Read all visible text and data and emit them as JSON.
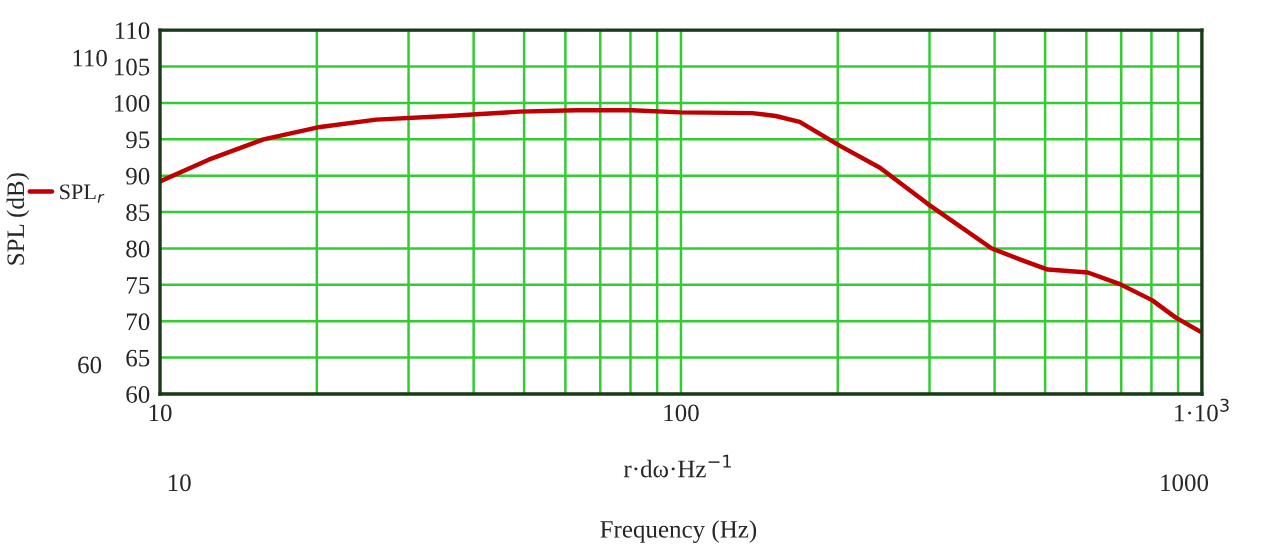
{
  "chart_data": {
    "type": "line",
    "ylabel": "SPL (dB)",
    "xlabel": "r·dω·Hz$^{−1}$",
    "annotations": [
      "110",
      "60",
      "10",
      "1000",
      "Frequency (Hz)"
    ],
    "x": [
      10,
      12.4,
      15.8,
      20.3,
      26,
      35.7,
      49,
      62.8,
      80.5,
      99.6,
      137,
      152,
      169,
      202,
      241,
      298,
      395,
      455,
      506,
      604,
      696,
      802,
      891,
      991
    ],
    "series": [
      {
        "name": "SPL$_{r}$",
        "color": "#c00000",
        "values": [
          89.2,
          92.2,
          95,
          96.7,
          97.7,
          98.2,
          98.8,
          99.0,
          99.0,
          98.7,
          98.6,
          98.2,
          97.4,
          94.1,
          91.1,
          86.1,
          80,
          78.3,
          77.1,
          76.7,
          75.1,
          72.9,
          70.5,
          68.6
        ]
      }
    ],
    "log": "x",
    "xlim": [
      10,
      1000
    ],
    "xticks": [
      10,
      100,
      {
        "value": 1000,
        "label": "1·10$^{3}$"
      }
    ],
    "ylim": [
      60,
      110
    ],
    "yticks": [
      60,
      65,
      70,
      75,
      80,
      85,
      90,
      95,
      100,
      105,
      110
    ],
    "grid": true,
    "legend": "left",
    "marker": "none",
    "line_style": "solid"
  }
}
